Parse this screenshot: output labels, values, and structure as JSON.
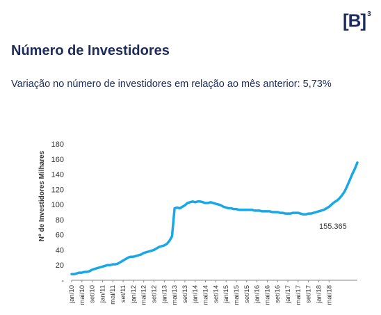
{
  "brand": {
    "logo_text": "[B]",
    "logo_sup": "3",
    "color": "#1c2b5a"
  },
  "header": {
    "title": "Número de Investidores",
    "subtitle": "Variação no número de investidores em relação ao mês anterior: 5,73%"
  },
  "chart_data": {
    "type": "line",
    "ylabel": "Nº de Investidores Milhares",
    "ylim": [
      0,
      180
    ],
    "yticks": [
      "-",
      "20",
      "40",
      "60",
      "80",
      "100",
      "120",
      "140",
      "160",
      "180"
    ],
    "xticks": [
      "jan/10",
      "mai/10",
      "set/10",
      "jan/11",
      "mai/11",
      "set/11",
      "jan/12",
      "mai/12",
      "set/12",
      "jan/13",
      "mai/13",
      "set/13",
      "jan/14",
      "mai/14",
      "set/14",
      "jan/15",
      "mai/15",
      "set/15",
      "jan/16",
      "mai/16",
      "set/16",
      "jan/17",
      "mai/17",
      "set/17",
      "jan/18",
      "mai/18"
    ],
    "grid": false,
    "color": "#1aa7e6",
    "annotation": "155.365",
    "series": [
      {
        "values": [
          8,
          8,
          9,
          10,
          10,
          11,
          11,
          12,
          14,
          15,
          16,
          17,
          18,
          19,
          20,
          20,
          21,
          21,
          22,
          24,
          26,
          28,
          30,
          31,
          31,
          32,
          33,
          34,
          36,
          37,
          38,
          39,
          40,
          42,
          44,
          45,
          46,
          48,
          52,
          58,
          95,
          96,
          95,
          97,
          99,
          102,
          103,
          104,
          103,
          104,
          104,
          103,
          102,
          102,
          103,
          102,
          101,
          100,
          99,
          97,
          96,
          95,
          95,
          94,
          94,
          93,
          93,
          93,
          93,
          93,
          93,
          92,
          92,
          92,
          91,
          91,
          91,
          91,
          90,
          90,
          90,
          89,
          89,
          88,
          88,
          88,
          89,
          89,
          89,
          88,
          87,
          87,
          88,
          88,
          89,
          90,
          91,
          92,
          93,
          95,
          97,
          100,
          103,
          105,
          108,
          112,
          117,
          124,
          132,
          140,
          147,
          155.365
        ]
      }
    ]
  }
}
